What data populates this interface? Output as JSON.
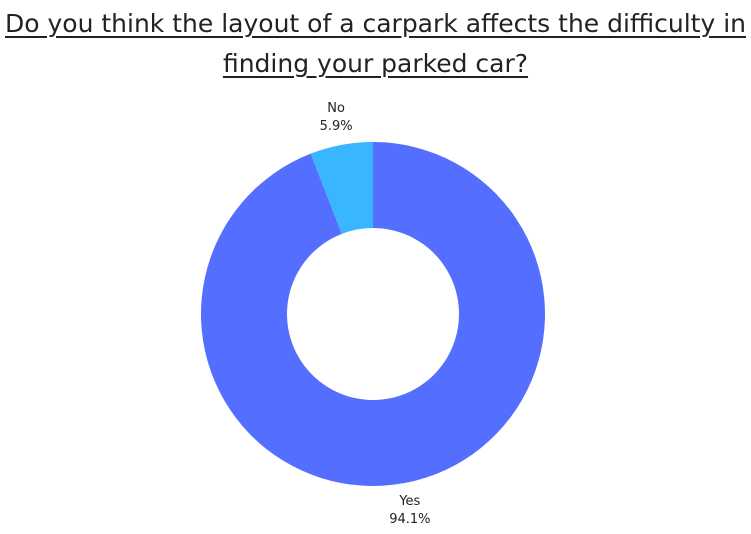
{
  "chart_data": {
    "type": "donut",
    "title": "Do you think the layout of a carpark affects the difficulty in finding your parked car?",
    "categories": [
      "Yes",
      "No"
    ],
    "values": [
      94.1,
      5.9
    ],
    "value_labels": [
      "94.1%",
      "5.9%"
    ],
    "colors": [
      "#546FFF",
      "#38B6FF"
    ]
  }
}
